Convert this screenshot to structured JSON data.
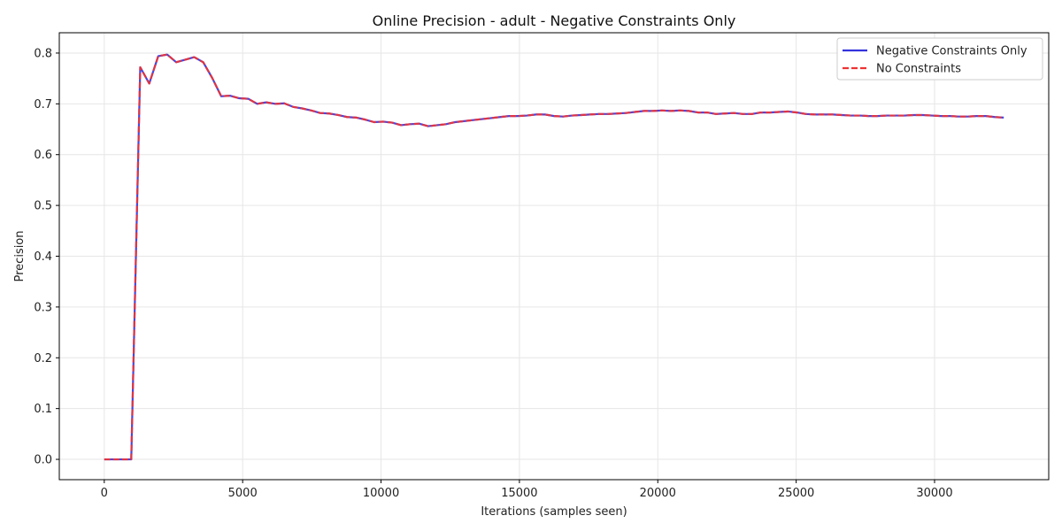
{
  "chart_data": {
    "type": "line",
    "title": "Online Precision - adult - Negative Constraints Only",
    "xlabel": "Iterations (samples seen)",
    "ylabel": "Precision",
    "xlim": [
      -1625,
      34125
    ],
    "ylim": [
      -0.04,
      0.84
    ],
    "xticks": [
      0,
      5000,
      10000,
      15000,
      20000,
      25000,
      30000
    ],
    "yticks": [
      0.0,
      0.1,
      0.2,
      0.3,
      0.4,
      0.5,
      0.6,
      0.7,
      0.8
    ],
    "grid": true,
    "legend_position": "upper-right",
    "series": [
      {
        "name": "Negative Constraints Only",
        "color": "#3333dd",
        "style": "solid",
        "x": [
          0,
          325,
          650,
          975,
          1300,
          1625,
          1950,
          2275,
          2600,
          2925,
          3250,
          3575,
          3900,
          4225,
          4550,
          4875,
          5200,
          5525,
          5850,
          6175,
          6500,
          6825,
          7150,
          7475,
          7800,
          8125,
          8450,
          8775,
          9100,
          9425,
          9750,
          10075,
          10400,
          10725,
          11050,
          11375,
          11700,
          12025,
          12350,
          12675,
          13000,
          13325,
          13650,
          13975,
          14300,
          14625,
          14950,
          15275,
          15600,
          15925,
          16250,
          16575,
          16900,
          17225,
          17550,
          17875,
          18200,
          18525,
          18850,
          19175,
          19500,
          19825,
          20150,
          20475,
          20800,
          21125,
          21450,
          21775,
          22100,
          22425,
          22750,
          23075,
          23400,
          23725,
          24050,
          24375,
          24700,
          25025,
          25350,
          25675,
          26000,
          26325,
          26650,
          26975,
          27300,
          27625,
          27950,
          28275,
          28600,
          28925,
          29250,
          29575,
          29900,
          30225,
          30550,
          30875,
          31200,
          31525,
          31850,
          32175,
          32500
        ],
        "y": [
          0.0,
          0.0,
          0.0,
          0.0,
          0.772,
          0.74,
          0.794,
          0.797,
          0.782,
          0.787,
          0.792,
          0.782,
          0.751,
          0.715,
          0.716,
          0.711,
          0.71,
          0.7,
          0.703,
          0.7,
          0.701,
          0.694,
          0.691,
          0.687,
          0.682,
          0.681,
          0.678,
          0.674,
          0.673,
          0.669,
          0.664,
          0.665,
          0.663,
          0.658,
          0.66,
          0.661,
          0.656,
          0.658,
          0.66,
          0.664,
          0.666,
          0.668,
          0.67,
          0.672,
          0.674,
          0.676,
          0.676,
          0.677,
          0.679,
          0.679,
          0.676,
          0.675,
          0.677,
          0.678,
          0.679,
          0.68,
          0.68,
          0.681,
          0.682,
          0.684,
          0.686,
          0.686,
          0.687,
          0.686,
          0.687,
          0.686,
          0.683,
          0.683,
          0.68,
          0.681,
          0.682,
          0.68,
          0.68,
          0.683,
          0.683,
          0.684,
          0.685,
          0.683,
          0.68,
          0.679,
          0.679,
          0.679,
          0.678,
          0.677,
          0.677,
          0.676,
          0.676,
          0.677,
          0.677,
          0.677,
          0.678,
          0.678,
          0.677,
          0.676,
          0.676,
          0.675,
          0.675,
          0.676,
          0.676,
          0.674,
          0.673
        ]
      },
      {
        "name": "No Constraints",
        "color": "#ee3333",
        "style": "dashed",
        "x": [
          0,
          325,
          650,
          975,
          1300,
          1625,
          1950,
          2275,
          2600,
          2925,
          3250,
          3575,
          3900,
          4225,
          4550,
          4875,
          5200,
          5525,
          5850,
          6175,
          6500,
          6825,
          7150,
          7475,
          7800,
          8125,
          8450,
          8775,
          9100,
          9425,
          9750,
          10075,
          10400,
          10725,
          11050,
          11375,
          11700,
          12025,
          12350,
          12675,
          13000,
          13325,
          13650,
          13975,
          14300,
          14625,
          14950,
          15275,
          15600,
          15925,
          16250,
          16575,
          16900,
          17225,
          17550,
          17875,
          18200,
          18525,
          18850,
          19175,
          19500,
          19825,
          20150,
          20475,
          20800,
          21125,
          21450,
          21775,
          22100,
          22425,
          22750,
          23075,
          23400,
          23725,
          24050,
          24375,
          24700,
          25025,
          25350,
          25675,
          26000,
          26325,
          26650,
          26975,
          27300,
          27625,
          27950,
          28275,
          28600,
          28925,
          29250,
          29575,
          29900,
          30225,
          30550,
          30875,
          31200,
          31525,
          31850,
          32175,
          32500
        ],
        "y": [
          0.0,
          0.0,
          0.0,
          0.0,
          0.772,
          0.74,
          0.794,
          0.797,
          0.782,
          0.787,
          0.792,
          0.782,
          0.751,
          0.715,
          0.716,
          0.711,
          0.71,
          0.7,
          0.703,
          0.7,
          0.701,
          0.694,
          0.691,
          0.687,
          0.682,
          0.681,
          0.678,
          0.674,
          0.673,
          0.669,
          0.664,
          0.665,
          0.663,
          0.658,
          0.66,
          0.661,
          0.656,
          0.658,
          0.66,
          0.664,
          0.666,
          0.668,
          0.67,
          0.672,
          0.674,
          0.676,
          0.676,
          0.677,
          0.679,
          0.679,
          0.676,
          0.675,
          0.677,
          0.678,
          0.679,
          0.68,
          0.68,
          0.681,
          0.682,
          0.684,
          0.686,
          0.686,
          0.687,
          0.686,
          0.687,
          0.686,
          0.683,
          0.683,
          0.68,
          0.681,
          0.682,
          0.68,
          0.68,
          0.683,
          0.683,
          0.684,
          0.685,
          0.683,
          0.68,
          0.679,
          0.679,
          0.679,
          0.678,
          0.677,
          0.677,
          0.676,
          0.676,
          0.677,
          0.677,
          0.677,
          0.678,
          0.678,
          0.677,
          0.676,
          0.676,
          0.675,
          0.675,
          0.676,
          0.676,
          0.674,
          0.673
        ]
      }
    ]
  }
}
